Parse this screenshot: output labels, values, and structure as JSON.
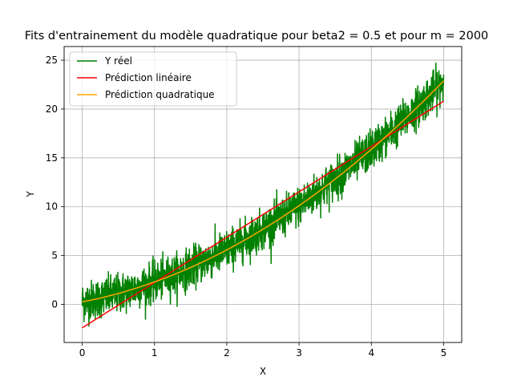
{
  "chart_data": {
    "type": "line",
    "title": "Fits d'entrainement du modèle quadratique pour beta2 = 0.5 et pour m = 2000",
    "xlabel": "X",
    "ylabel": "Y",
    "xlim": [
      -0.25,
      5.25
    ],
    "ylim": [
      -3.9,
      26.4
    ],
    "xticks": [
      0,
      1,
      2,
      3,
      4,
      5
    ],
    "yticks": [
      0,
      5,
      10,
      15,
      20,
      25
    ],
    "grid": true,
    "legend_position": "top-left",
    "n_points": 2000,
    "series": [
      {
        "name": "Y réel",
        "color": "#008000",
        "kind": "noisy-quadratic",
        "x_range": [
          0,
          5
        ],
        "noise_sd": 1.0,
        "y_at_x0": 0.2,
        "y_at_x5": 22.9
      },
      {
        "name": "Prédiction linéaire",
        "color": "#ff0000",
        "kind": "line",
        "x": [
          0,
          5
        ],
        "y": [
          -2.4,
          20.8
        ]
      },
      {
        "name": "Prédiction quadratique",
        "color": "#ffa500",
        "kind": "quadratic",
        "x": [
          0,
          1,
          2,
          3,
          4,
          5
        ],
        "y": [
          0.2,
          2.4,
          5.6,
          10.0,
          15.9,
          22.9
        ]
      }
    ]
  }
}
